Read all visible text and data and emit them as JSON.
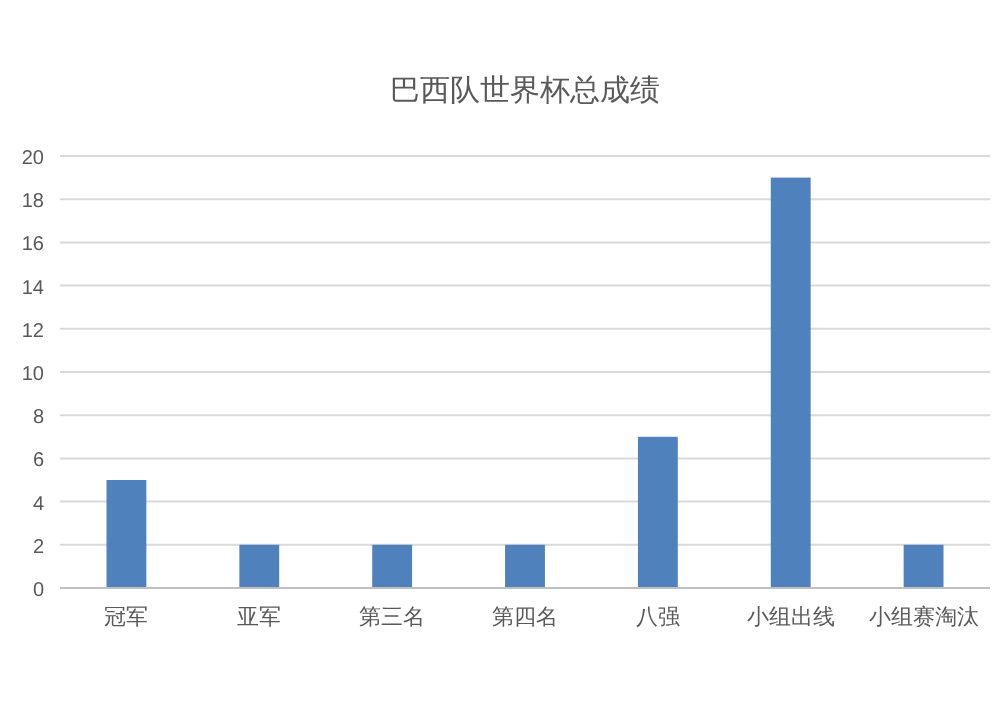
{
  "chart_data": {
    "type": "bar",
    "title": "巴西队世界杯总成绩",
    "categories": [
      "冠军",
      "亚军",
      "第三名",
      "第四名",
      "八强",
      "小组出线",
      "小组赛淘汰"
    ],
    "values": [
      5,
      2,
      2,
      2,
      7,
      19,
      2
    ],
    "color": "#4f81bd",
    "ylim": [
      0,
      20
    ],
    "yticks": [
      0,
      2,
      4,
      6,
      8,
      10,
      12,
      14,
      16,
      18,
      20
    ],
    "grid": "y"
  }
}
